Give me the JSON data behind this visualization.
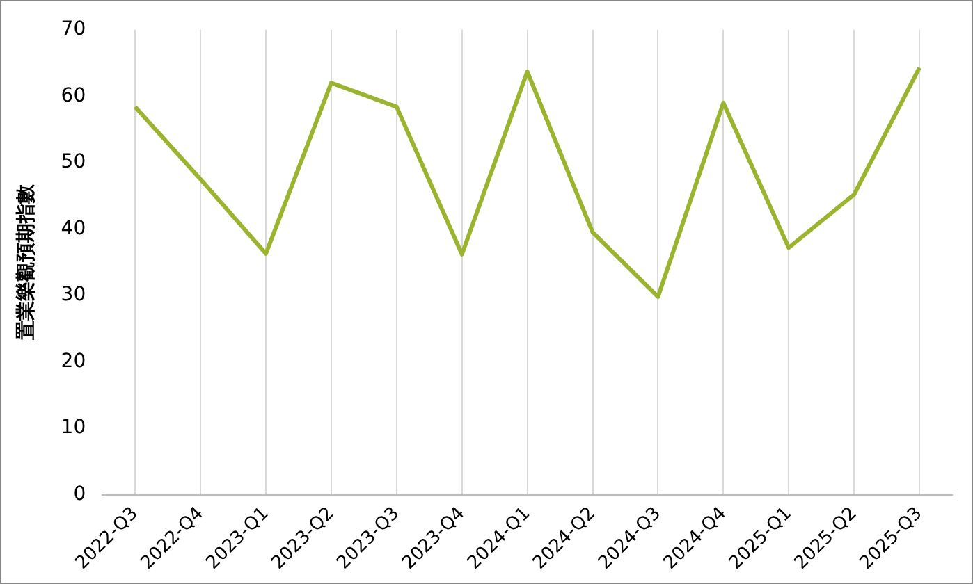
{
  "chart_data": {
    "type": "line",
    "ylabel": "置業樂觀預期指數",
    "categories": [
      "2022-Q3",
      "2022-Q4",
      "2023-Q1",
      "2023-Q2",
      "2023-Q3",
      "2023-Q4",
      "2024-Q1",
      "2024-Q2",
      "2024-Q3",
      "2024-Q4",
      "2025-Q1",
      "2025-Q2",
      "2025-Q3"
    ],
    "series": [
      {
        "color": "#9bb42f",
        "values": [
          58.4,
          47.5,
          36.3,
          62.0,
          58.4,
          36.2,
          63.7,
          39.5,
          29.8,
          59.0,
          37.2,
          45.2,
          64.3
        ]
      }
    ],
    "ylim": [
      0,
      70
    ],
    "yticks": [
      0,
      10,
      20,
      30,
      40,
      50,
      60,
      70
    ],
    "grid": "x",
    "legend": false,
    "marker": "none",
    "line_style": "solid"
  }
}
